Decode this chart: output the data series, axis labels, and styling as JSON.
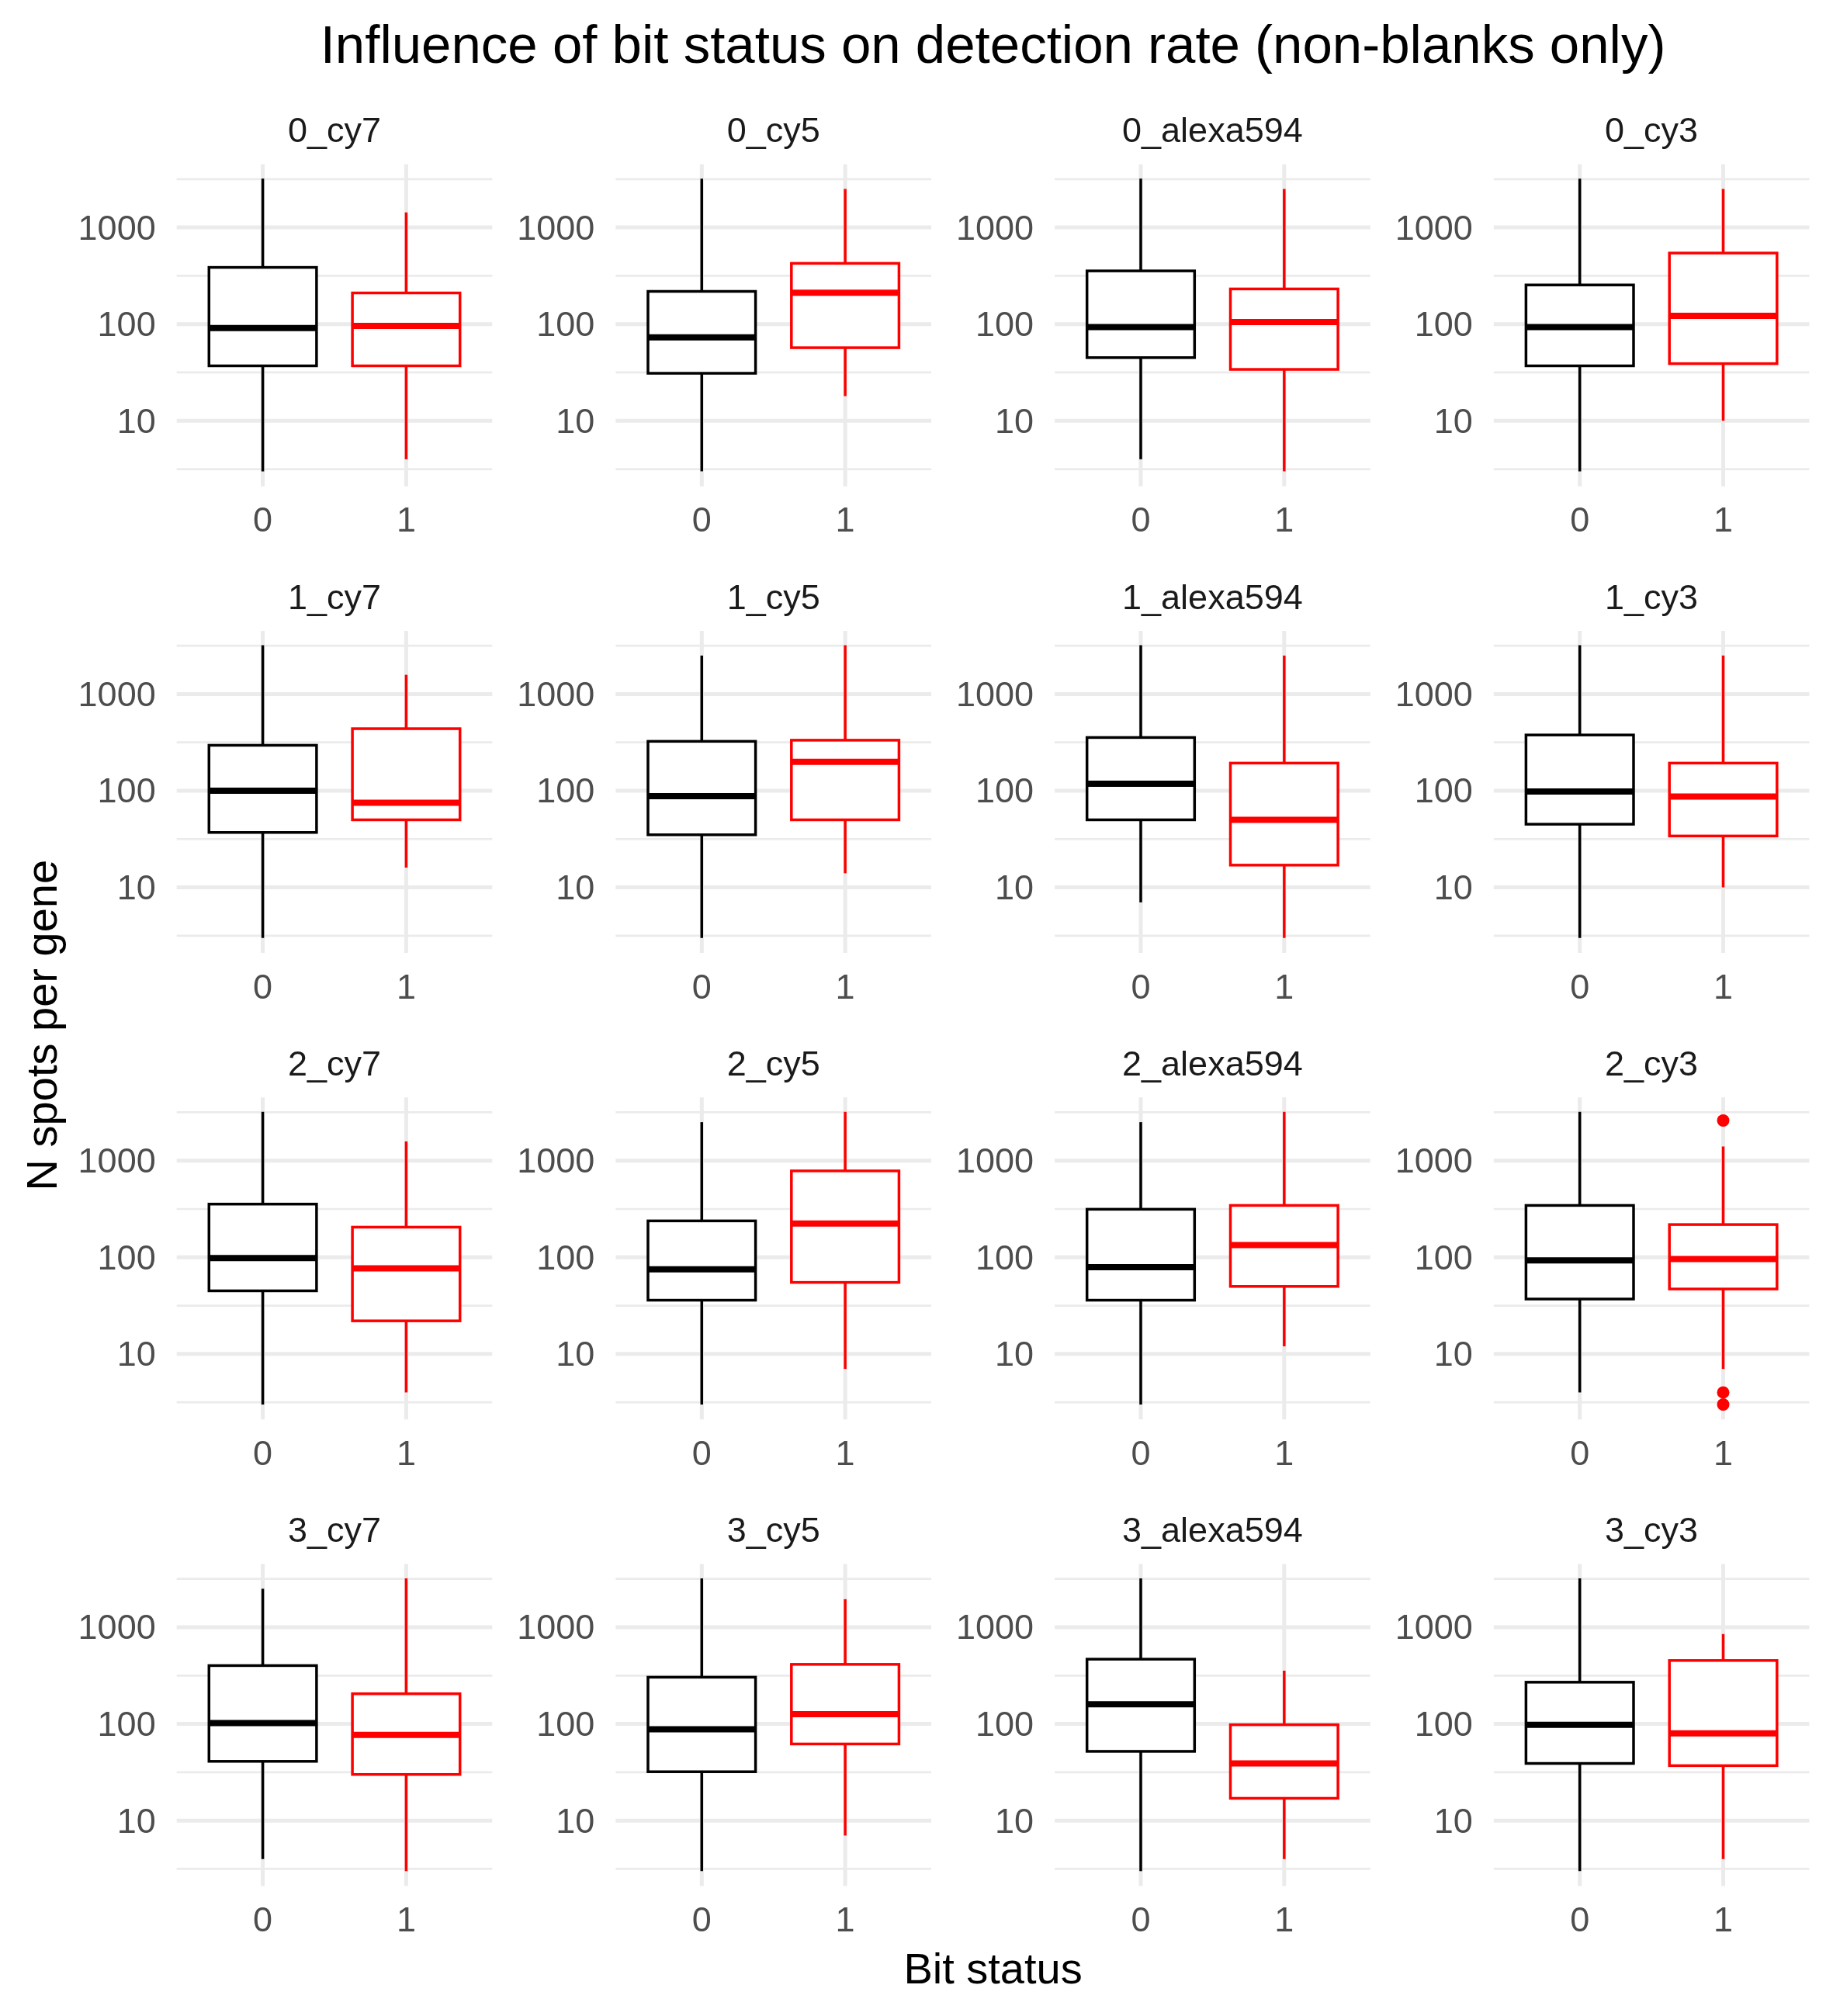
{
  "chart_data": [
    {
      "type": "other",
      "title": "Influence of bit status on detection rate (non-blanks only)",
      "xlabel": "Bit status",
      "ylabel": "N spots per gene"
    },
    {
      "type": "box",
      "title": "0_cy7",
      "categories": [
        "0",
        "1"
      ],
      "colors": [
        "#000000",
        "#ff0000"
      ],
      "boxes": [
        {
          "low": 3,
          "q1": 37,
          "median": 91,
          "q3": 386,
          "high": 3200
        },
        {
          "low": 4,
          "q1": 37,
          "median": 96,
          "q3": 210,
          "high": 1430
        }
      ],
      "log": true,
      "ylim": [
        2.1,
        4500
      ],
      "yticks": [
        {
          "value": 3.162,
          "label": null
        },
        10,
        {
          "value": 31.62,
          "label": null
        },
        100,
        {
          "value": 316.2,
          "label": null
        },
        1000,
        {
          "value": 3162,
          "label": null
        }
      ],
      "grid": true
    },
    {
      "type": "box",
      "title": "0_cy5",
      "categories": [
        "0",
        "1"
      ],
      "colors": [
        "#000000",
        "#ff0000"
      ],
      "boxes": [
        {
          "low": 3,
          "q1": 31,
          "median": 73,
          "q3": 218,
          "high": 3200
        },
        {
          "low": 18,
          "q1": 57,
          "median": 211,
          "q3": 425,
          "high": 2500
        }
      ],
      "log": true,
      "ylim": [
        2.1,
        4500
      ],
      "yticks": [
        {
          "value": 3.162,
          "label": null
        },
        10,
        {
          "value": 31.62,
          "label": null
        },
        100,
        {
          "value": 316.2,
          "label": null
        },
        1000,
        {
          "value": 3162,
          "label": null
        }
      ],
      "grid": true
    },
    {
      "type": "box",
      "title": "0_alexa594",
      "categories": [
        "0",
        "1"
      ],
      "colors": [
        "#000000",
        "#ff0000"
      ],
      "boxes": [
        {
          "low": 4,
          "q1": 45,
          "median": 93,
          "q3": 355,
          "high": 3200
        },
        {
          "low": 3,
          "q1": 34,
          "median": 105,
          "q3": 231,
          "high": 2500
        }
      ],
      "log": true,
      "ylim": [
        2.1,
        4500
      ],
      "yticks": [
        {
          "value": 3.162,
          "label": null
        },
        10,
        {
          "value": 31.62,
          "label": null
        },
        100,
        {
          "value": 316.2,
          "label": null
        },
        1000,
        {
          "value": 3162,
          "label": null
        }
      ],
      "grid": true
    },
    {
      "type": "box",
      "title": "0_cy3",
      "categories": [
        "0",
        "1"
      ],
      "colors": [
        "#000000",
        "#ff0000"
      ],
      "boxes": [
        {
          "low": 3,
          "q1": 37,
          "median": 93,
          "q3": 254,
          "high": 3200
        },
        {
          "low": 10,
          "q1": 39,
          "median": 122,
          "q3": 543,
          "high": 2500
        }
      ],
      "log": true,
      "ylim": [
        2.1,
        4500
      ],
      "yticks": [
        {
          "value": 3.162,
          "label": null
        },
        10,
        {
          "value": 31.62,
          "label": null
        },
        100,
        {
          "value": 316.2,
          "label": null
        },
        1000,
        {
          "value": 3162,
          "label": null
        }
      ],
      "grid": true
    },
    {
      "type": "box",
      "title": "1_cy7",
      "categories": [
        "0",
        "1"
      ],
      "colors": [
        "#000000",
        "#ff0000"
      ],
      "boxes": [
        {
          "low": 3,
          "q1": 37,
          "median": 100,
          "q3": 295,
          "high": 3200
        },
        {
          "low": 16,
          "q1": 50,
          "median": 75,
          "q3": 438,
          "high": 1580
        }
      ],
      "log": true,
      "ylim": [
        2.1,
        4500
      ],
      "yticks": [
        {
          "value": 3.162,
          "label": null
        },
        10,
        {
          "value": 31.62,
          "label": null
        },
        100,
        {
          "value": 316.2,
          "label": null
        },
        1000,
        {
          "value": 3162,
          "label": null
        }
      ],
      "grid": true
    },
    {
      "type": "box",
      "title": "1_cy5",
      "categories": [
        "0",
        "1"
      ],
      "colors": [
        "#000000",
        "#ff0000"
      ],
      "boxes": [
        {
          "low": 3,
          "q1": 35,
          "median": 88,
          "q3": 324,
          "high": 2500
        },
        {
          "low": 14,
          "q1": 50,
          "median": 199,
          "q3": 333,
          "high": 3200
        }
      ],
      "log": true,
      "ylim": [
        2.1,
        4500
      ],
      "yticks": [
        {
          "value": 3.162,
          "label": null
        },
        10,
        {
          "value": 31.62,
          "label": null
        },
        100,
        {
          "value": 316.2,
          "label": null
        },
        1000,
        {
          "value": 3162,
          "label": null
        }
      ],
      "grid": true
    },
    {
      "type": "box",
      "title": "1_alexa594",
      "categories": [
        "0",
        "1"
      ],
      "colors": [
        "#000000",
        "#ff0000"
      ],
      "boxes": [
        {
          "low": 7,
          "q1": 50,
          "median": 118,
          "q3": 355,
          "high": 3200
        },
        {
          "low": 3,
          "q1": 17,
          "median": 50,
          "q3": 193,
          "high": 2500
        }
      ],
      "log": true,
      "ylim": [
        2.1,
        4500
      ],
      "yticks": [
        {
          "value": 3.162,
          "label": null
        },
        10,
        {
          "value": 31.62,
          "label": null
        },
        100,
        {
          "value": 316.2,
          "label": null
        },
        1000,
        {
          "value": 3162,
          "label": null
        }
      ],
      "grid": true
    },
    {
      "type": "box",
      "title": "1_cy3",
      "categories": [
        "0",
        "1"
      ],
      "colors": [
        "#000000",
        "#ff0000"
      ],
      "boxes": [
        {
          "low": 3,
          "q1": 45,
          "median": 98,
          "q3": 377,
          "high": 3200
        },
        {
          "low": 10,
          "q1": 34,
          "median": 87,
          "q3": 193,
          "high": 2500
        }
      ],
      "log": true,
      "ylim": [
        2.1,
        4500
      ],
      "yticks": [
        {
          "value": 3.162,
          "label": null
        },
        10,
        {
          "value": 31.62,
          "label": null
        },
        100,
        {
          "value": 316.2,
          "label": null
        },
        1000,
        {
          "value": 3162,
          "label": null
        }
      ],
      "grid": true
    },
    {
      "type": "box",
      "title": "2_cy7",
      "categories": [
        "0",
        "1"
      ],
      "colors": [
        "#000000",
        "#ff0000"
      ],
      "boxes": [
        {
          "low": 3,
          "q1": 45,
          "median": 98,
          "q3": 355,
          "high": 3200
        },
        {
          "low": 4,
          "q1": 22,
          "median": 77,
          "q3": 205,
          "high": 1580
        }
      ],
      "log": true,
      "ylim": [
        2.1,
        4500
      ],
      "yticks": [
        {
          "value": 3.162,
          "label": null
        },
        10,
        {
          "value": 31.62,
          "label": null
        },
        100,
        {
          "value": 316.2,
          "label": null
        },
        1000,
        {
          "value": 3162,
          "label": null
        }
      ],
      "grid": true
    },
    {
      "type": "box",
      "title": "2_cy5",
      "categories": [
        "0",
        "1"
      ],
      "colors": [
        "#000000",
        "#ff0000"
      ],
      "boxes": [
        {
          "low": 3,
          "q1": 36,
          "median": 75,
          "q3": 238,
          "high": 2500
        },
        {
          "low": 7,
          "q1": 55,
          "median": 224,
          "q3": 783,
          "high": 3200
        }
      ],
      "log": true,
      "ylim": [
        2.1,
        4500
      ],
      "yticks": [
        {
          "value": 3.162,
          "label": null
        },
        10,
        {
          "value": 31.62,
          "label": null
        },
        100,
        {
          "value": 316.2,
          "label": null
        },
        1000,
        {
          "value": 3162,
          "label": null
        }
      ],
      "grid": true
    },
    {
      "type": "box",
      "title": "2_alexa594",
      "categories": [
        "0",
        "1"
      ],
      "colors": [
        "#000000",
        "#ff0000"
      ],
      "boxes": [
        {
          "low": 3,
          "q1": 36,
          "median": 79,
          "q3": 314,
          "high": 2500
        },
        {
          "low": 12,
          "q1": 50,
          "median": 134,
          "q3": 344,
          "high": 3200
        }
      ],
      "log": true,
      "ylim": [
        2.1,
        4500
      ],
      "yticks": [
        {
          "value": 3.162,
          "label": null
        },
        10,
        {
          "value": 31.62,
          "label": null
        },
        100,
        {
          "value": 316.2,
          "label": null
        },
        1000,
        {
          "value": 3162,
          "label": null
        }
      ],
      "grid": true
    },
    {
      "type": "box",
      "title": "2_cy3",
      "categories": [
        "0",
        "1"
      ],
      "colors": [
        "#000000",
        "#ff0000"
      ],
      "boxes": [
        {
          "low": 4,
          "q1": 37,
          "median": 93,
          "q3": 344,
          "high": 3200
        },
        {
          "low": 7,
          "q1": 47,
          "median": 96,
          "q3": 218,
          "high": 1400,
          "outliers": [
            2600,
            4,
            3
          ]
        }
      ],
      "log": true,
      "ylim": [
        2.1,
        4500
      ],
      "yticks": [
        {
          "value": 3.162,
          "label": null
        },
        10,
        {
          "value": 31.62,
          "label": null
        },
        100,
        {
          "value": 316.2,
          "label": null
        },
        1000,
        {
          "value": 3162,
          "label": null
        }
      ],
      "grid": true
    },
    {
      "type": "box",
      "title": "3_cy7",
      "categories": [
        "0",
        "1"
      ],
      "colors": [
        "#000000",
        "#ff0000"
      ],
      "boxes": [
        {
          "low": 4,
          "q1": 41,
          "median": 102,
          "q3": 401,
          "high": 2500
        },
        {
          "low": 3,
          "q1": 30,
          "median": 77,
          "q3": 205,
          "high": 3200
        }
      ],
      "log": true,
      "ylim": [
        2.1,
        4500
      ],
      "yticks": [
        {
          "value": 3.162,
          "label": null
        },
        10,
        {
          "value": 31.62,
          "label": null
        },
        100,
        {
          "value": 316.2,
          "label": null
        },
        1000,
        {
          "value": 3162,
          "label": null
        }
      ],
      "grid": true
    },
    {
      "type": "box",
      "title": "3_cy5",
      "categories": [
        "0",
        "1"
      ],
      "colors": [
        "#000000",
        "#ff0000"
      ],
      "boxes": [
        {
          "low": 3,
          "q1": 32,
          "median": 88,
          "q3": 304,
          "high": 3200
        },
        {
          "low": 7,
          "q1": 62,
          "median": 126,
          "q3": 413,
          "high": 1950
        }
      ],
      "log": true,
      "ylim": [
        2.1,
        4500
      ],
      "yticks": [
        {
          "value": 3.162,
          "label": null
        },
        10,
        {
          "value": 31.62,
          "label": null
        },
        100,
        {
          "value": 316.2,
          "label": null
        },
        1000,
        {
          "value": 3162,
          "label": null
        }
      ],
      "grid": true
    },
    {
      "type": "box",
      "title": "3_alexa594",
      "categories": [
        "0",
        "1"
      ],
      "colors": [
        "#000000",
        "#ff0000"
      ],
      "boxes": [
        {
          "low": 3,
          "q1": 52,
          "median": 160,
          "q3": 467,
          "high": 3200
        },
        {
          "low": 4,
          "q1": 17,
          "median": 39,
          "q3": 98,
          "high": 355
        }
      ],
      "log": true,
      "ylim": [
        2.1,
        4500
      ],
      "yticks": [
        {
          "value": 3.162,
          "label": null
        },
        10,
        {
          "value": 31.62,
          "label": null
        },
        100,
        {
          "value": 316.2,
          "label": null
        },
        1000,
        {
          "value": 3162,
          "label": null
        }
      ],
      "grid": true
    },
    {
      "type": "box",
      "title": "3_cy3",
      "categories": [
        "0",
        "1"
      ],
      "colors": [
        "#000000",
        "#ff0000"
      ],
      "boxes": [
        {
          "low": 3,
          "q1": 39,
          "median": 98,
          "q3": 270,
          "high": 3200
        },
        {
          "low": 4,
          "q1": 37,
          "median": 80,
          "q3": 453,
          "high": 850
        }
      ],
      "log": true,
      "ylim": [
        2.1,
        4500
      ],
      "yticks": [
        {
          "value": 3.162,
          "label": null
        },
        10,
        {
          "value": 31.62,
          "label": null
        },
        100,
        {
          "value": 316.2,
          "label": null
        },
        1000,
        {
          "value": 3162,
          "label": null
        }
      ],
      "grid": true
    }
  ]
}
